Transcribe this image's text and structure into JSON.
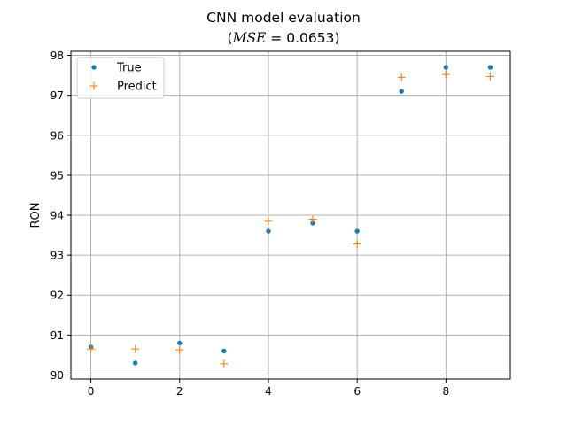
{
  "chart_data": {
    "type": "scatter",
    "title": "CNN model evaluation",
    "subtitle_prefix": "(",
    "subtitle_math": "MSE",
    "subtitle_rest": " = 0.0653)",
    "xlabel": "",
    "ylabel": "RON",
    "xlim": [
      -0.45,
      9.45
    ],
    "ylim": [
      89.9,
      98.1
    ],
    "xticks": [
      0,
      2,
      4,
      6,
      8
    ],
    "yticks": [
      90,
      91,
      92,
      93,
      94,
      95,
      96,
      97,
      98
    ],
    "grid": true,
    "legend_position": "top-left",
    "x": [
      0,
      1,
      2,
      3,
      4,
      5,
      6,
      7,
      8,
      9
    ],
    "series": [
      {
        "name": "True",
        "marker": "dot",
        "color": "#1f77b4",
        "values": [
          90.7,
          90.3,
          90.8,
          90.6,
          93.6,
          93.8,
          93.6,
          97.1,
          97.7,
          97.7
        ]
      },
      {
        "name": "Predict",
        "marker": "plus",
        "color": "#ff7f0e",
        "values": [
          90.65,
          90.65,
          90.63,
          90.28,
          93.85,
          93.9,
          93.28,
          97.45,
          97.52,
          97.47
        ]
      }
    ]
  }
}
